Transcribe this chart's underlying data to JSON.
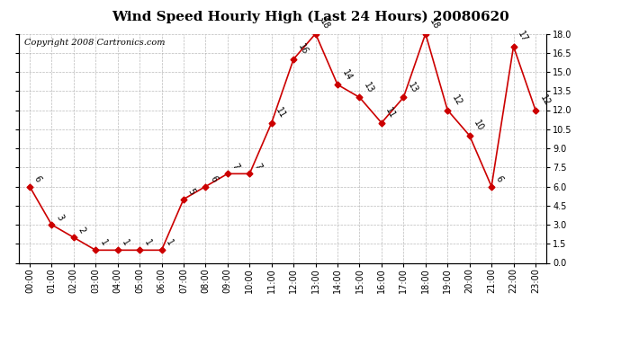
{
  "title": "Wind Speed Hourly High (Last 24 Hours) 20080620",
  "copyright": "Copyright 2008 Cartronics.com",
  "hours": [
    "00:00",
    "01:00",
    "02:00",
    "03:00",
    "04:00",
    "05:00",
    "06:00",
    "07:00",
    "08:00",
    "09:00",
    "10:00",
    "11:00",
    "12:00",
    "13:00",
    "14:00",
    "15:00",
    "16:00",
    "17:00",
    "18:00",
    "19:00",
    "20:00",
    "21:00",
    "22:00",
    "23:00"
  ],
  "values": [
    6,
    3,
    2,
    1,
    1,
    1,
    1,
    5,
    6,
    7,
    7,
    11,
    16,
    18,
    14,
    13,
    11,
    13,
    18,
    12,
    10,
    6,
    17,
    12
  ],
  "ylim": [
    0.0,
    18.0
  ],
  "yticks": [
    0.0,
    1.5,
    3.0,
    4.5,
    6.0,
    7.5,
    9.0,
    10.5,
    12.0,
    13.5,
    15.0,
    16.5,
    18.0
  ],
  "line_color": "#cc0000",
  "marker_color": "#cc0000",
  "bg_color": "#ffffff",
  "grid_color": "#aaaaaa",
  "title_fontsize": 11,
  "copyright_fontsize": 7,
  "label_fontsize": 7,
  "tick_fontsize": 7
}
